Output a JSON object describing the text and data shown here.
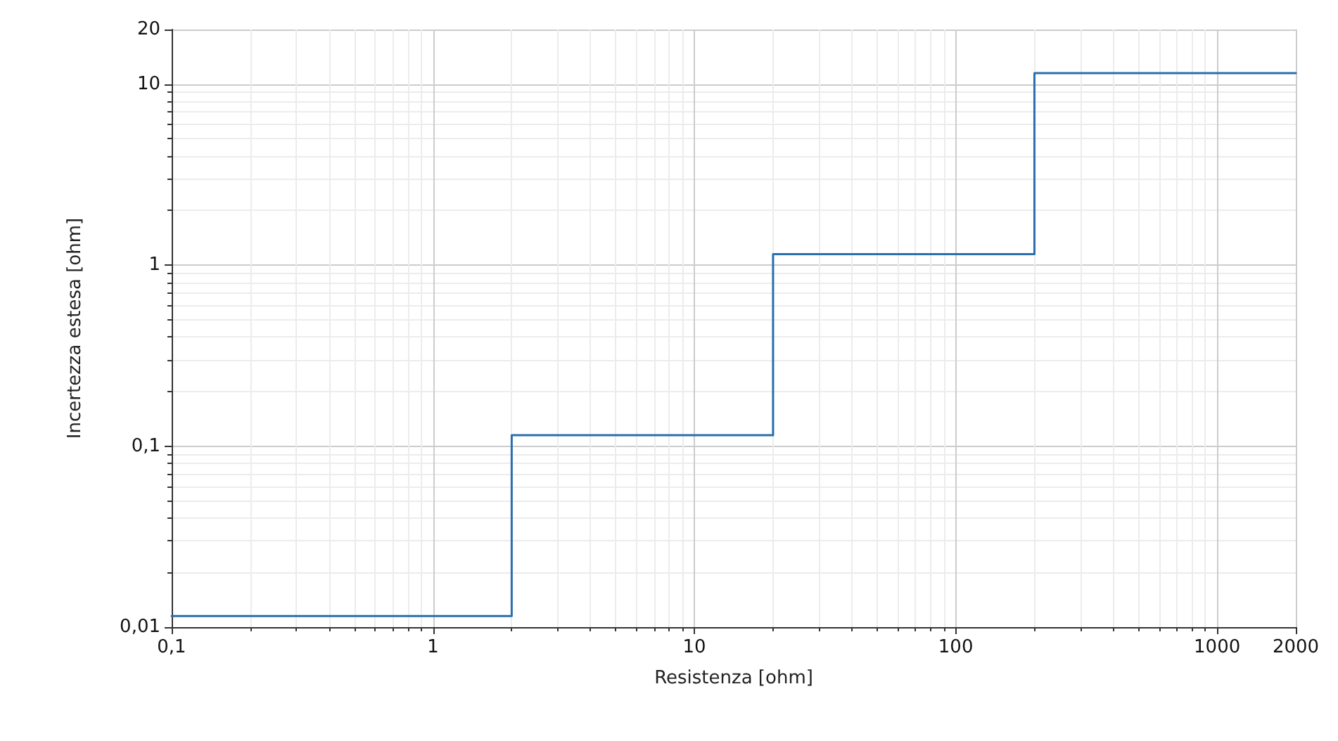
{
  "chart_data": {
    "type": "step",
    "xlabel": "Resistenza [ohm]",
    "ylabel": "Incertezza estesa [ohm]",
    "x": [
      0.1,
      2,
      20,
      200,
      2000
    ],
    "series": [
      {
        "color": "#2a6ead",
        "values": [
          0.0115,
          0.115,
          1.15,
          11.5,
          11.5
        ]
      }
    ],
    "log": "xy",
    "xlim": [
      0.1,
      2000
    ],
    "xticks": [
      {
        "value": 0.1,
        "label": "0,1"
      },
      1,
      10,
      100,
      1000,
      2000
    ],
    "ylim": [
      0.01,
      20
    ],
    "yticks": [
      {
        "value": 0.01,
        "label": "0,01"
      },
      {
        "value": 0.1,
        "label": "0,1"
      },
      1,
      10,
      20
    ],
    "grid": true,
    "marker": "none",
    "line_style": "solid"
  }
}
